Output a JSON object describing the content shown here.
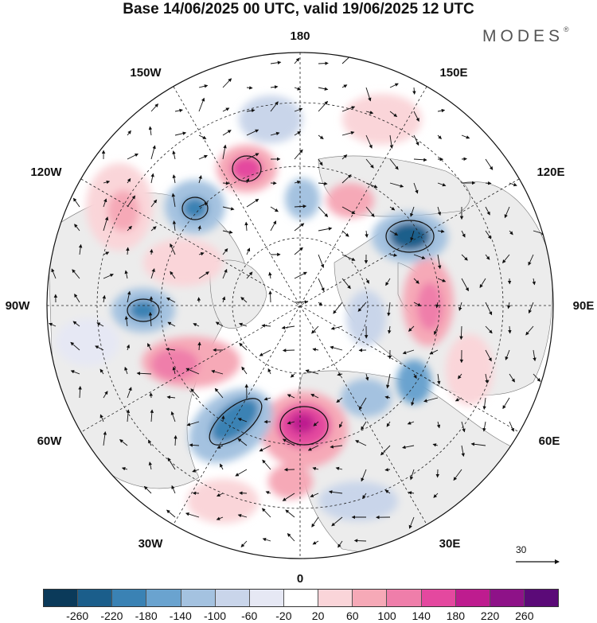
{
  "title": "Base 14/06/2025 00 UTC, valid 19/06/2025 12 UTC",
  "brand": {
    "name": "MODES",
    "mark": "®"
  },
  "map": {
    "projection": "north-polar-stereographic",
    "longitude_labels": {
      "top": "180",
      "bottom": "0",
      "left": "90W",
      "right": "90E",
      "upper_left": "150W",
      "upper_right": "150E",
      "left_upper": "120W",
      "right_upper": "120E",
      "left_lower": "60W",
      "right_lower": "60E",
      "lower_left": "30W",
      "lower_right": "30E"
    },
    "graticule": "dashed",
    "land_color": "#ececec",
    "anomalies": [
      {
        "sign": "positive",
        "strength": 4,
        "region": "North Atlantic / Europe (0–30E)"
      },
      {
        "sign": "negative",
        "strength": 3,
        "region": "Greenland / Labrador Sea (40W–60W)"
      },
      {
        "sign": "negative",
        "strength": 3,
        "region": "Siberia (135E)"
      },
      {
        "sign": "positive",
        "strength": 2,
        "region": "Western Siberia (90E)"
      },
      {
        "sign": "negative",
        "strength": 2,
        "region": "Hudson Bay (90W)"
      },
      {
        "sign": "positive",
        "strength": 2,
        "region": "Eastern Canada (70W)"
      },
      {
        "sign": "positive",
        "strength": 3,
        "region": "Bering Sea / Alaska (165W)"
      },
      {
        "sign": "negative",
        "strength": 2,
        "region": "Gulf of Alaska (135W)"
      },
      {
        "sign": "negative",
        "strength": 2,
        "region": "Central Asia (50E)"
      },
      {
        "sign": "positive",
        "strength": 1,
        "region": "North Pacific (120W)"
      }
    ]
  },
  "wind_reference": {
    "value": "30",
    "icon": "arrow-right-icon"
  },
  "colorbar": {
    "colors": [
      "#0b3a5a",
      "#1b5e8b",
      "#3a82b4",
      "#6aa3cf",
      "#a4c2e0",
      "#c9d5ea",
      "#e6e8f4",
      "#ffffff",
      "#fad5d9",
      "#f6a9b7",
      "#ef7eaa",
      "#e4489f",
      "#be1c8f",
      "#8e1288",
      "#5b0a78"
    ],
    "ticks": [
      "-260",
      "-220",
      "-180",
      "-140",
      "-100",
      "-60",
      "-20",
      "20",
      "60",
      "100",
      "140",
      "180",
      "220",
      "260"
    ]
  }
}
